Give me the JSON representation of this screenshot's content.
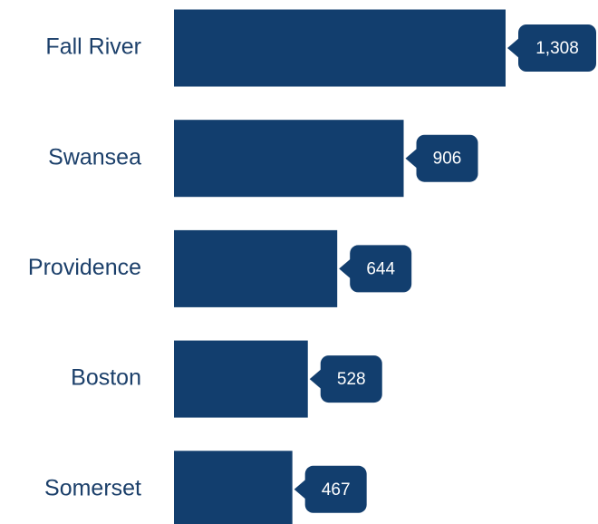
{
  "chart_data": {
    "type": "bar",
    "orientation": "horizontal",
    "categories": [
      "Fall River",
      "Swansea",
      "Providence",
      "Boston",
      "Somerset"
    ],
    "values": [
      1308,
      906,
      644,
      528,
      467
    ],
    "value_labels": [
      "1,308",
      "906",
      "644",
      "528",
      "467"
    ],
    "color": "#123e6e"
  }
}
